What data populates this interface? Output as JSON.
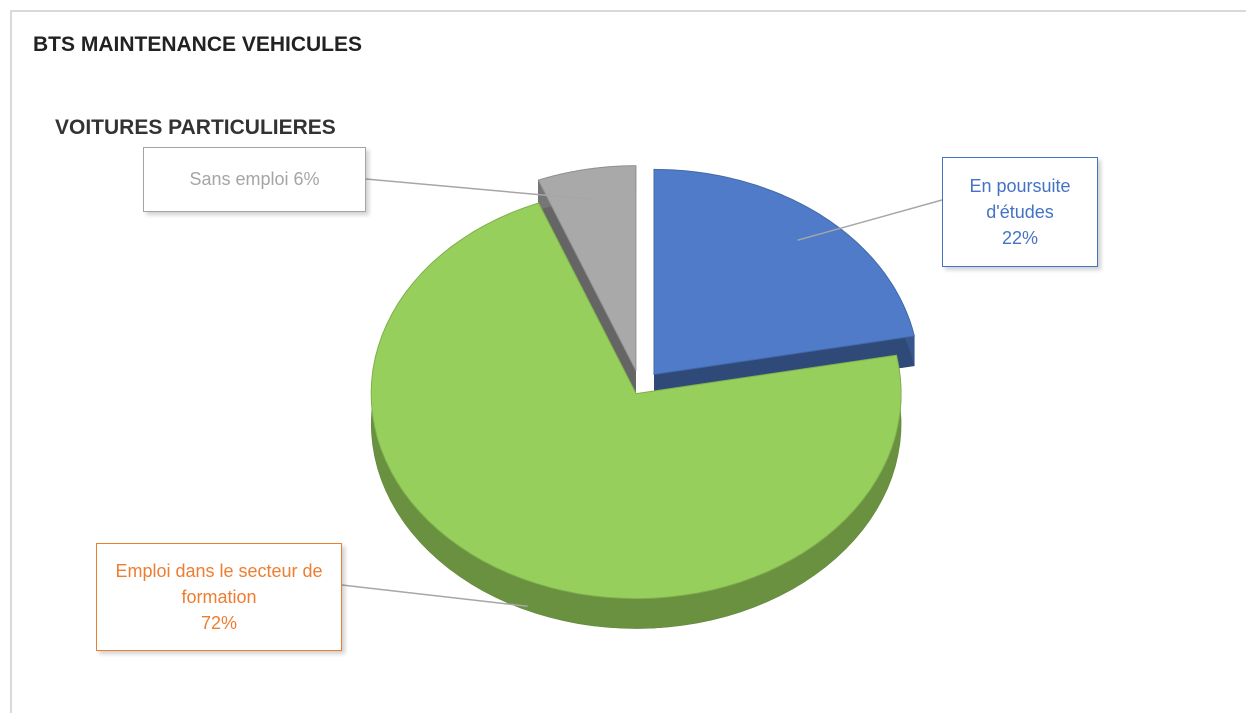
{
  "chart_data": {
    "type": "pie3d",
    "title": "BTS MAINTENANCE VEHICULES",
    "subtitle": "VOITURES PARTICULIERES",
    "categories": [
      "En poursuite d'études",
      "Emploi dans le secteur de formation",
      "Sans emploi"
    ],
    "values": [
      22,
      72,
      6
    ],
    "value_labels": [
      "22%",
      "72%",
      "6%"
    ],
    "colors": [
      "#4f7bc8",
      "#96cf5c",
      "#a9a9a9"
    ],
    "label_colors": [
      "#4472c4",
      "#ed7d31",
      "#a5a5a5"
    ]
  }
}
